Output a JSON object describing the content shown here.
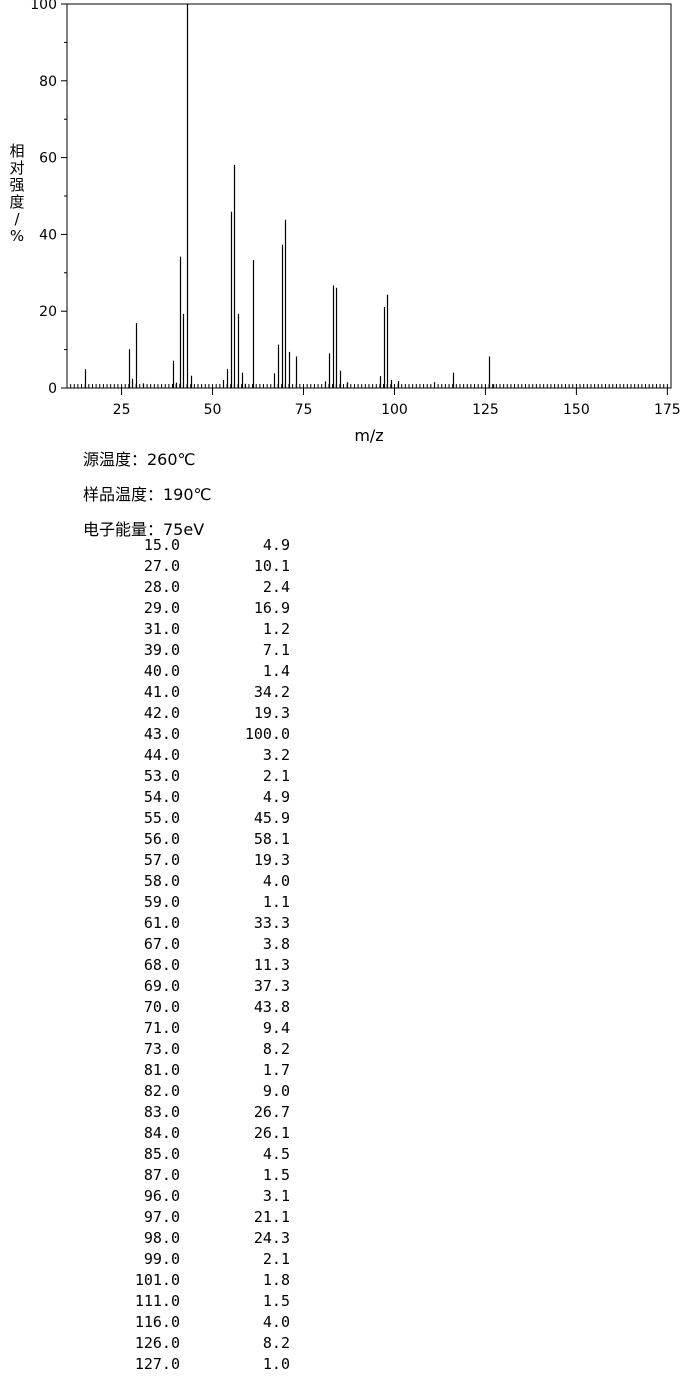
{
  "chart_data": {
    "type": "bar",
    "xlabel": "m/z",
    "ylabel": "相对强度/%",
    "xlim": [
      10,
      176
    ],
    "ylim": [
      0,
      100
    ],
    "x_ticks": [
      25,
      50,
      75,
      100,
      125,
      150,
      175
    ],
    "y_ticks": [
      0,
      20,
      40,
      60,
      80,
      100
    ],
    "x": [
      15,
      27,
      28,
      29,
      31,
      39,
      40,
      41,
      42,
      43,
      44,
      53,
      54,
      55,
      56,
      57,
      58,
      59,
      61,
      67,
      68,
      69,
      70,
      71,
      73,
      81,
      82,
      83,
      84,
      85,
      87,
      96,
      97,
      98,
      99,
      101,
      111,
      116,
      126,
      127
    ],
    "values": [
      4.9,
      10.1,
      2.4,
      16.9,
      1.2,
      7.1,
      1.4,
      34.2,
      19.3,
      100.0,
      3.2,
      2.1,
      4.9,
      45.9,
      58.1,
      19.3,
      4.0,
      1.1,
      33.3,
      3.8,
      11.3,
      37.3,
      43.8,
      9.4,
      8.2,
      1.7,
      9.0,
      26.7,
      26.1,
      4.5,
      1.5,
      3.1,
      21.1,
      24.3,
      2.1,
      1.8,
      1.5,
      4.0,
      8.2,
      1.0
    ]
  },
  "ylabel_chars": [
    "相",
    "对",
    "强",
    "度",
    "/",
    "%"
  ],
  "conditions": {
    "source_temp": "源温度：260℃",
    "sample_temp": "样品温度：190℃",
    "electron_energy": "电子能量：75eV"
  },
  "peaks": [
    {
      "mz": "15.0",
      "ab": "4.9"
    },
    {
      "mz": "27.0",
      "ab": "10.1"
    },
    {
      "mz": "28.0",
      "ab": "2.4"
    },
    {
      "mz": "29.0",
      "ab": "16.9"
    },
    {
      "mz": "31.0",
      "ab": "1.2"
    },
    {
      "mz": "39.0",
      "ab": "7.1"
    },
    {
      "mz": "40.0",
      "ab": "1.4"
    },
    {
      "mz": "41.0",
      "ab": "34.2"
    },
    {
      "mz": "42.0",
      "ab": "19.3"
    },
    {
      "mz": "43.0",
      "ab": "100.0"
    },
    {
      "mz": "44.0",
      "ab": "3.2"
    },
    {
      "mz": "53.0",
      "ab": "2.1"
    },
    {
      "mz": "54.0",
      "ab": "4.9"
    },
    {
      "mz": "55.0",
      "ab": "45.9"
    },
    {
      "mz": "56.0",
      "ab": "58.1"
    },
    {
      "mz": "57.0",
      "ab": "19.3"
    },
    {
      "mz": "58.0",
      "ab": "4.0"
    },
    {
      "mz": "59.0",
      "ab": "1.1"
    },
    {
      "mz": "61.0",
      "ab": "33.3"
    },
    {
      "mz": "67.0",
      "ab": "3.8"
    },
    {
      "mz": "68.0",
      "ab": "11.3"
    },
    {
      "mz": "69.0",
      "ab": "37.3"
    },
    {
      "mz": "70.0",
      "ab": "43.8"
    },
    {
      "mz": "71.0",
      "ab": "9.4"
    },
    {
      "mz": "73.0",
      "ab": "8.2"
    },
    {
      "mz": "81.0",
      "ab": "1.7"
    },
    {
      "mz": "82.0",
      "ab": "9.0"
    },
    {
      "mz": "83.0",
      "ab": "26.7"
    },
    {
      "mz": "84.0",
      "ab": "26.1"
    },
    {
      "mz": "85.0",
      "ab": "4.5"
    },
    {
      "mz": "87.0",
      "ab": "1.5"
    },
    {
      "mz": "96.0",
      "ab": "3.1"
    },
    {
      "mz": "97.0",
      "ab": "21.1"
    },
    {
      "mz": "98.0",
      "ab": "24.3"
    },
    {
      "mz": "99.0",
      "ab": "2.1"
    },
    {
      "mz": "101.0",
      "ab": "1.8"
    },
    {
      "mz": "111.0",
      "ab": "1.5"
    },
    {
      "mz": "116.0",
      "ab": "4.0"
    },
    {
      "mz": "126.0",
      "ab": "8.2"
    },
    {
      "mz": "127.0",
      "ab": "1.0"
    }
  ]
}
